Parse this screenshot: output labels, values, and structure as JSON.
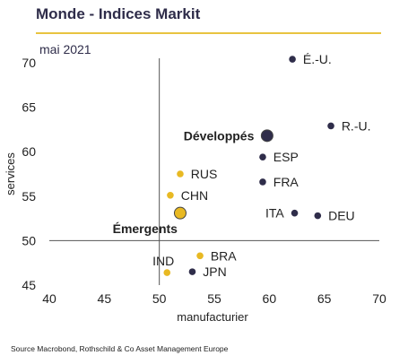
{
  "title": "Monde - Indices Markit",
  "source": "Source Macrobond, Rothschild & Co Asset Management Europe",
  "chart_data": {
    "type": "scatter",
    "subtitle": "mai 2021",
    "xlabel": "manufacturier",
    "ylabel": "services",
    "xlim": [
      40,
      70
    ],
    "ylim": [
      45,
      70
    ],
    "xticks": [
      "40",
      "45",
      "50",
      "55",
      "60",
      "65",
      "70"
    ],
    "yticks": [
      "45",
      "50",
      "55",
      "60",
      "65",
      "70"
    ],
    "reference_lines": {
      "x": 50,
      "y": 50
    },
    "grid": false,
    "colors": {
      "developed": "#2f2d4a",
      "emerging": "#e8b923",
      "axis": "#555555"
    },
    "points": [
      {
        "label": "É.-U.",
        "x": 62.1,
        "y": 70.4,
        "group": "developed",
        "label_side": "right"
      },
      {
        "label": "R.-U.",
        "x": 65.6,
        "y": 62.9,
        "group": "developed",
        "label_side": "right"
      },
      {
        "label": "ESP",
        "x": 59.4,
        "y": 59.4,
        "group": "developed",
        "label_side": "right"
      },
      {
        "label": "FRA",
        "x": 59.4,
        "y": 56.6,
        "group": "developed",
        "label_side": "right"
      },
      {
        "label": "ITA",
        "x": 62.3,
        "y": 53.1,
        "group": "developed",
        "label_side": "left"
      },
      {
        "label": "DEU",
        "x": 64.4,
        "y": 52.8,
        "group": "developed",
        "label_side": "right"
      },
      {
        "label": "JPN",
        "x": 53.0,
        "y": 46.5,
        "group": "developed",
        "label_side": "right"
      },
      {
        "label": "RUS",
        "x": 51.9,
        "y": 57.5,
        "group": "emerging",
        "label_side": "right"
      },
      {
        "label": "CHN",
        "x": 51.0,
        "y": 55.1,
        "group": "emerging",
        "label_side": "right"
      },
      {
        "label": "BRA",
        "x": 53.7,
        "y": 48.3,
        "group": "emerging",
        "label_side": "right"
      },
      {
        "label": "IND",
        "x": 50.7,
        "y": 46.4,
        "group": "emerging",
        "label_side": "above-left"
      }
    ],
    "aggregates": [
      {
        "label": "Développés",
        "x": 59.8,
        "y": 61.8,
        "group": "developed",
        "label_side": "left"
      },
      {
        "label": "Émergents",
        "x": 51.9,
        "y": 53.1,
        "group": "emerging",
        "label_side": "below-left"
      }
    ]
  }
}
